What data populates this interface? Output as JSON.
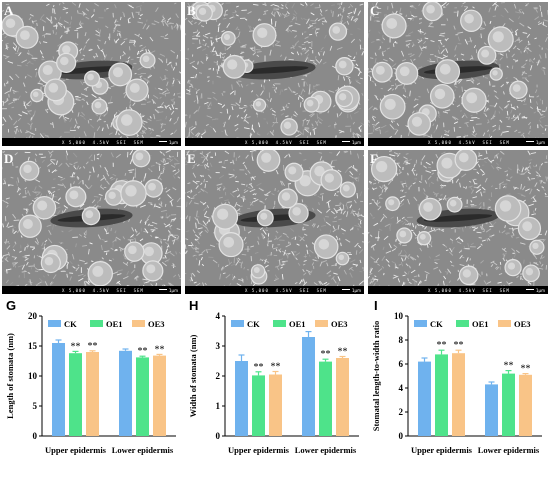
{
  "panels": [
    {
      "letter": "A",
      "scale_text": "X 5,000  4.5kV  SEI  SEM",
      "scale_label": "1μm"
    },
    {
      "letter": "B",
      "scale_text": "X 5,000  4.5kV  SEI  SEM",
      "scale_label": "1μm"
    },
    {
      "letter": "C",
      "scale_text": "X 5,000  4.5kV  SEI  SEM",
      "scale_label": "1μm"
    },
    {
      "letter": "D",
      "scale_text": "X 5,000  4.5kV  SEI  SEM",
      "scale_label": "1μm"
    },
    {
      "letter": "E",
      "scale_text": "X 5,000  4.5kV  SEI  SEM",
      "scale_label": "1μm"
    },
    {
      "letter": "F",
      "scale_text": "X 5,000  4.5kV  SEI  SEM",
      "scale_label": "1μm"
    }
  ],
  "colors": {
    "CK": "#6fb2ee",
    "OE1": "#4ee38a",
    "OE3": "#f9c487"
  },
  "legend": [
    "CK",
    "OE1",
    "OE3"
  ],
  "chart_data": [
    {
      "letter": "G",
      "type": "bar",
      "categories": [
        "Upper epidermis",
        "Lower epidermis"
      ],
      "series": [
        {
          "name": "CK",
          "values": [
            15.5,
            14.2
          ],
          "errors": [
            0.5,
            0.3
          ]
        },
        {
          "name": "OE1",
          "values": [
            13.8,
            13.1
          ],
          "errors": [
            0.3,
            0.2
          ]
        },
        {
          "name": "OE3",
          "values": [
            14.0,
            13.4
          ],
          "errors": [
            0.2,
            0.2
          ]
        }
      ],
      "significance": [
        [
          "",
          "**",
          "**"
        ],
        [
          "",
          "**",
          "**"
        ]
      ],
      "ylabel": "Length of stomata (nm)",
      "ylim": [
        0,
        20
      ],
      "yticks": [
        "0",
        "5",
        "10",
        "15",
        "20"
      ],
      "yticks_num": [
        0,
        5,
        10,
        15,
        20
      ]
    },
    {
      "letter": "H",
      "type": "bar",
      "categories": [
        "Upper epidermis",
        "Lower epidermis"
      ],
      "series": [
        {
          "name": "CK",
          "values": [
            2.5,
            3.3
          ],
          "errors": [
            0.2,
            0.18
          ]
        },
        {
          "name": "OE1",
          "values": [
            2.02,
            2.48
          ],
          "errors": [
            0.12,
            0.08
          ]
        },
        {
          "name": "OE3",
          "values": [
            2.05,
            2.6
          ],
          "errors": [
            0.1,
            0.05
          ]
        }
      ],
      "significance": [
        [
          "",
          "**",
          "**"
        ],
        [
          "",
          "**",
          "**"
        ]
      ],
      "ylabel": "Width of stomata (nm)",
      "ylim": [
        0,
        4
      ],
      "yticks": [
        "0",
        "1",
        "2",
        "3",
        "4"
      ],
      "yticks_num": [
        0,
        1,
        2,
        3,
        4
      ]
    },
    {
      "letter": "I",
      "type": "bar",
      "categories": [
        "Upper epidermis",
        "Lower epidermis"
      ],
      "series": [
        {
          "name": "CK",
          "values": [
            6.2,
            4.3
          ],
          "errors": [
            0.3,
            0.2
          ]
        },
        {
          "name": "OE1",
          "values": [
            6.8,
            5.2
          ],
          "errors": [
            0.35,
            0.25
          ]
        },
        {
          "name": "OE3",
          "values": [
            6.9,
            5.1
          ],
          "errors": [
            0.25,
            0.1
          ]
        }
      ],
      "significance": [
        [
          "",
          "**",
          "**"
        ],
        [
          "",
          "**",
          "**"
        ]
      ],
      "ylabel": "Stomatal length-to-width ratio",
      "ylim": [
        0,
        10
      ],
      "yticks": [
        "0",
        "2",
        "4",
        "6",
        "8",
        "10"
      ],
      "yticks_num": [
        0,
        2,
        4,
        6,
        8,
        10
      ]
    }
  ]
}
